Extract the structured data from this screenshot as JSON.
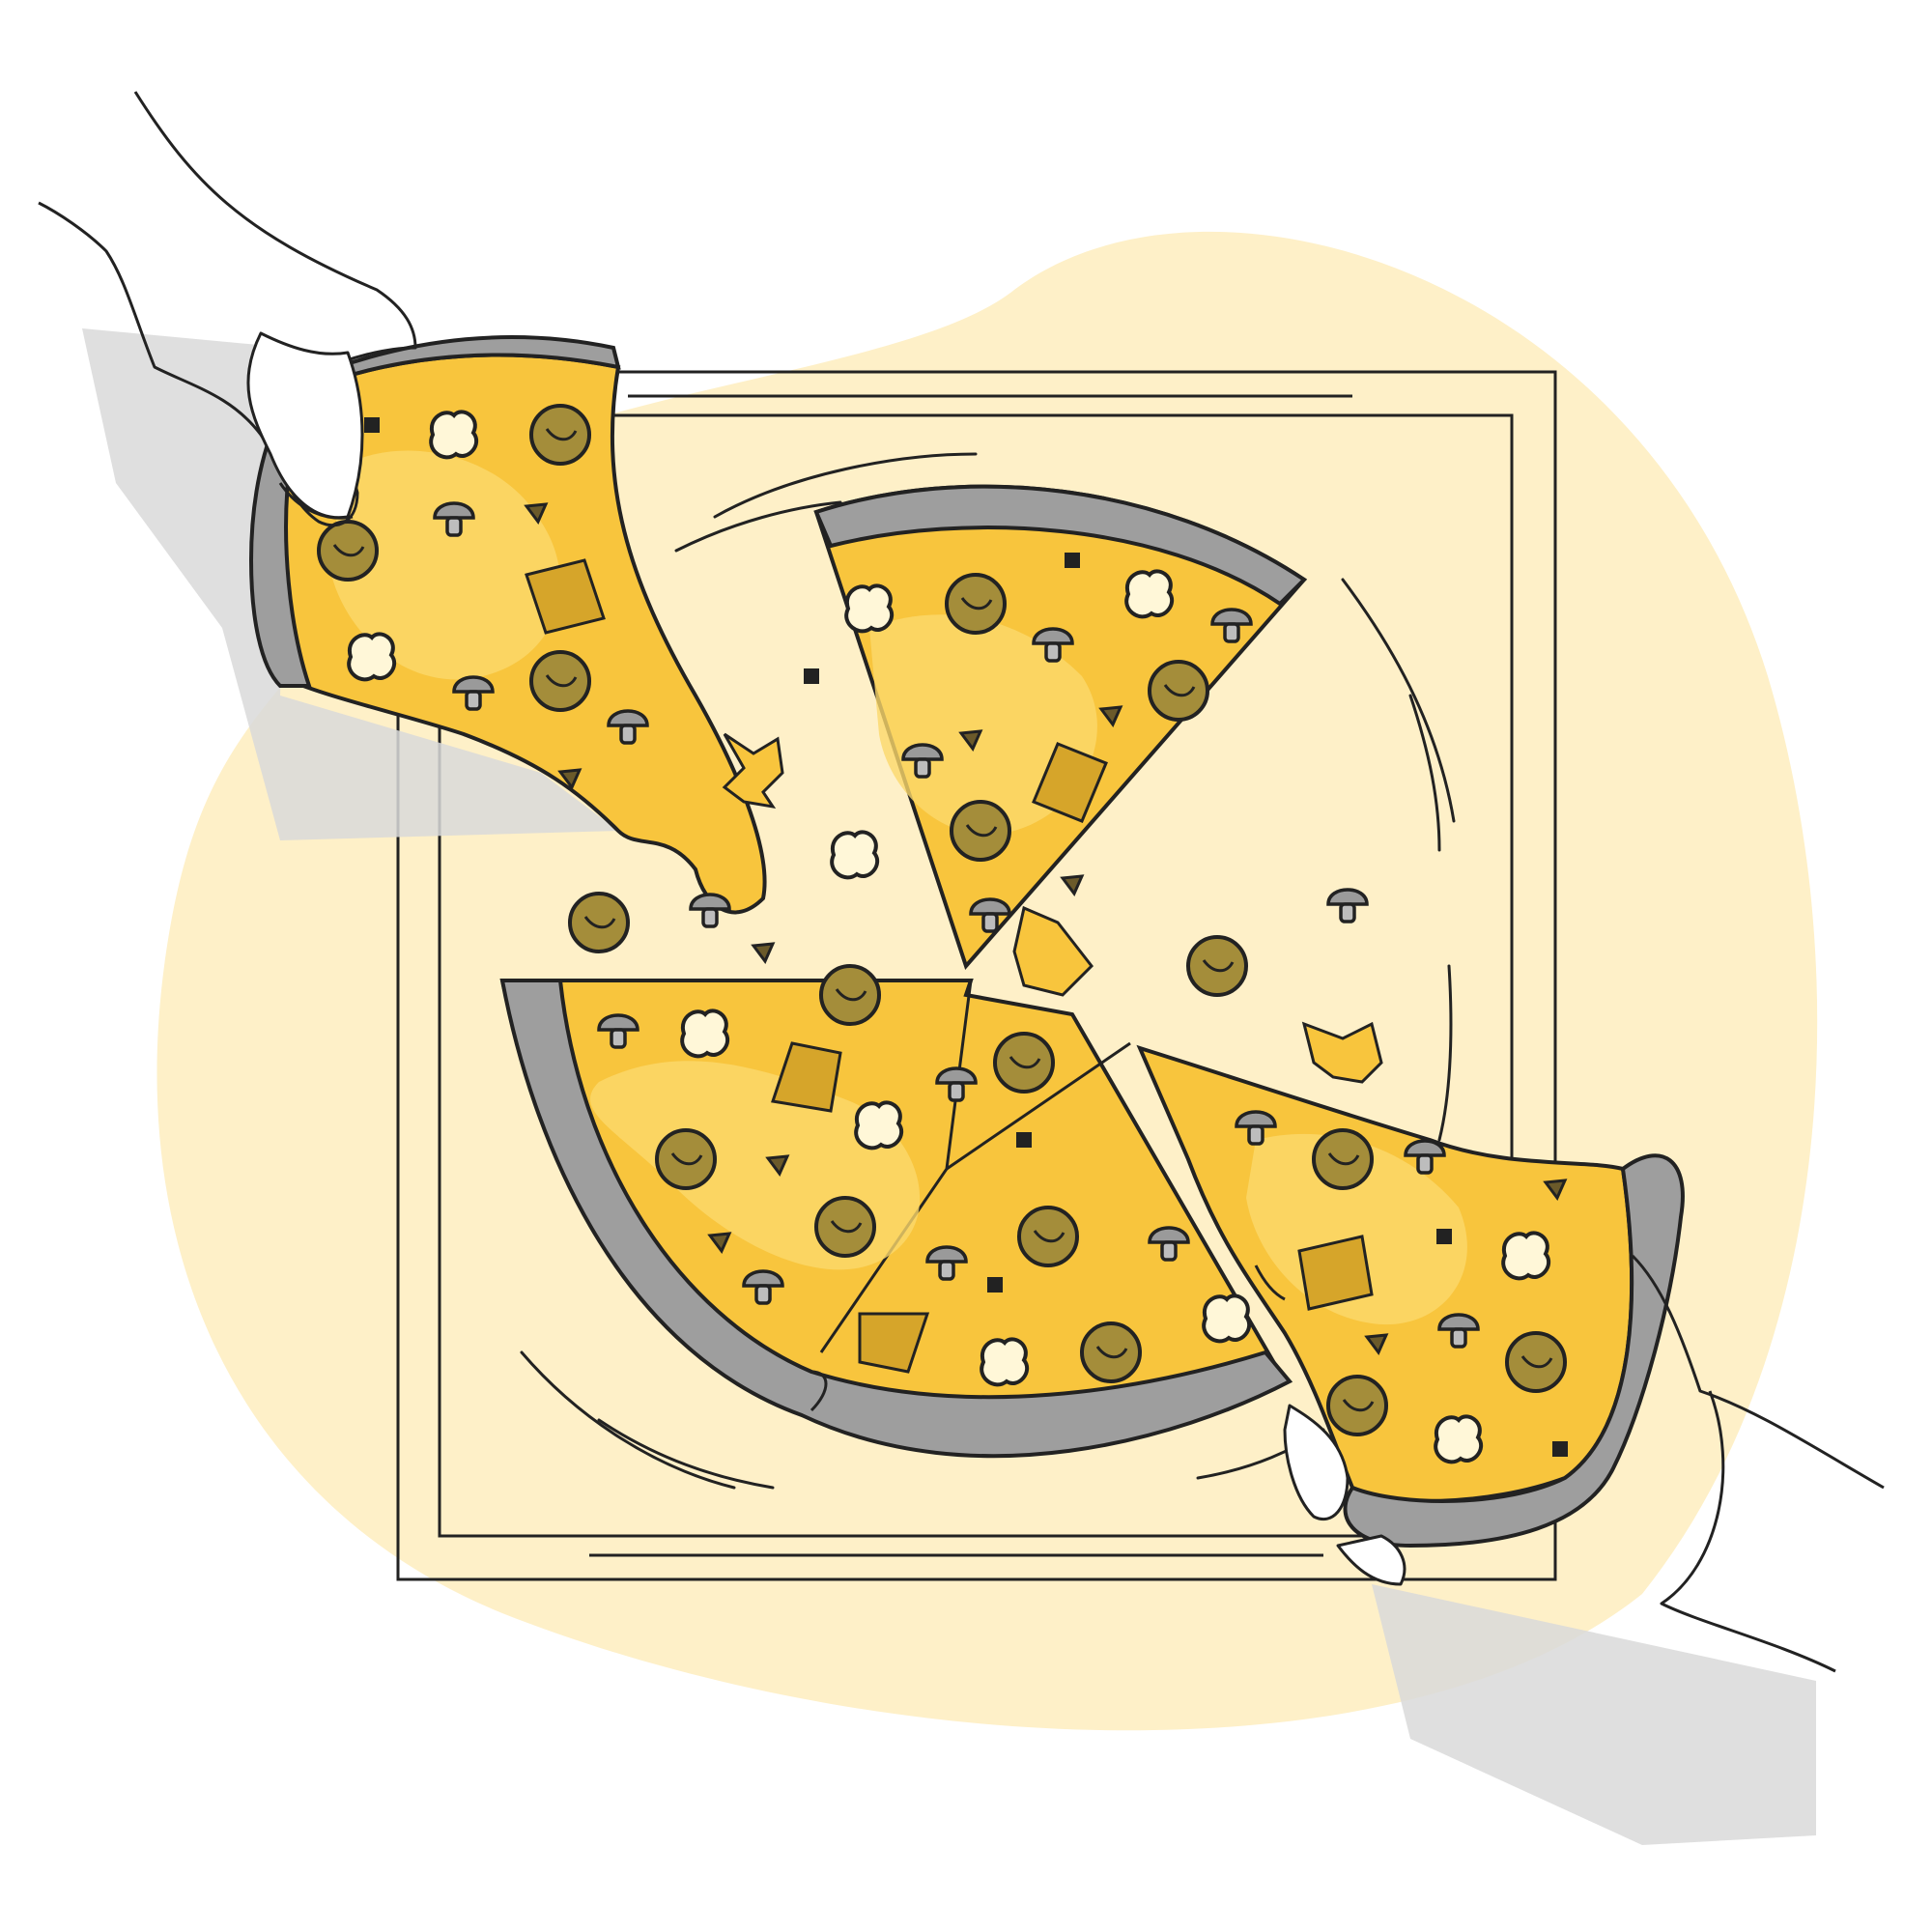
{
  "illustration": {
    "subject": "pizza-sharing",
    "palette": {
      "background": "#ffffff",
      "blob": "#fef0c8",
      "cheese": "#f8c53d",
      "cheese_light": "#fbd86c",
      "crust": "#9e9e9e",
      "crust_light": "#bdbdbd",
      "pepperoni": "#a48d3a",
      "pepperoni_inner": "#8e7a2f",
      "mushroom": "#9a9a9a",
      "shadow": "#d9d9d9",
      "outline": "#222222",
      "skin": "#ffffff"
    },
    "icons": [
      "pizza-icon",
      "hand-icon",
      "pepperoni-icon",
      "mushroom-icon",
      "pizza-box-icon"
    ]
  }
}
